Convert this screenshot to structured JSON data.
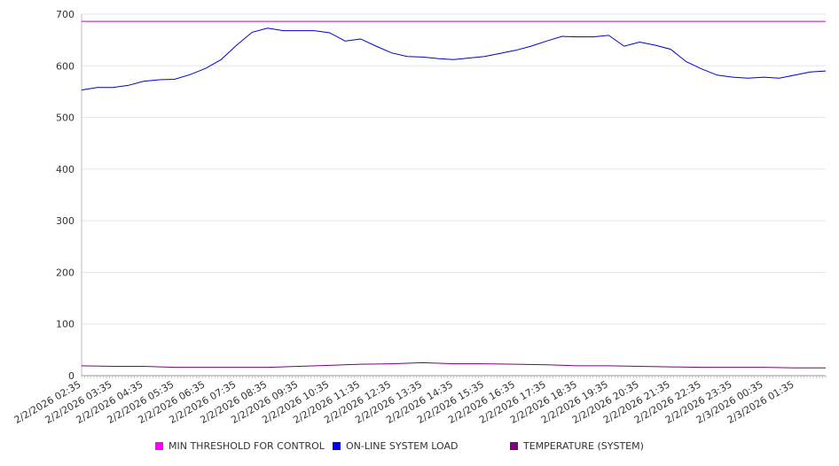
{
  "chart_data": {
    "type": "line",
    "title": "",
    "xlabel": "",
    "ylabel": "",
    "ylim": [
      0,
      700
    ],
    "yticks": [
      0,
      100,
      200,
      300,
      400,
      500,
      600,
      700
    ],
    "xlim": [
      "2/2/2026 02:35",
      "2/3/2026 02:35"
    ],
    "xtick_labels": [
      "2/2/2026 02:35",
      "2/2/2026 03:35",
      "2/2/2026 04:35",
      "2/2/2026 05:35",
      "2/2/2026 06:35",
      "2/2/2026 07:35",
      "2/2/2026 08:35",
      "2/2/2026 09:35",
      "2/2/2026 10:35",
      "2/2/2026 11:35",
      "2/2/2026 12:35",
      "2/2/2026 13:35",
      "2/2/2026 14:35",
      "2/2/2026 15:35",
      "2/2/2026 16:35",
      "2/2/2026 17:35",
      "2/2/2026 18:35",
      "2/2/2026 19:35",
      "2/2/2026 20:35",
      "2/2/2026 21:35",
      "2/2/2026 22:35",
      "2/2/2026 23:35",
      "2/3/2026 00:35",
      "2/3/2026 01:35"
    ],
    "grid": true,
    "legend_position": "bottom",
    "series": [
      {
        "name": "MIN THRESHOLD FOR CONTROL",
        "color": "#cc00cc",
        "x": [
          "2/2/2026 02:35",
          "2/3/2026 02:35"
        ],
        "values": [
          686,
          686
        ]
      },
      {
        "name": "ON-LINE SYSTEM LOAD",
        "color": "#0000cc",
        "x": [
          "2/2/2026 02:35",
          "2/2/2026 03:05",
          "2/2/2026 03:35",
          "2/2/2026 04:05",
          "2/2/2026 04:35",
          "2/2/2026 05:05",
          "2/2/2026 05:35",
          "2/2/2026 06:05",
          "2/2/2026 06:35",
          "2/2/2026 07:05",
          "2/2/2026 07:35",
          "2/2/2026 08:05",
          "2/2/2026 08:35",
          "2/2/2026 09:05",
          "2/2/2026 09:35",
          "2/2/2026 10:05",
          "2/2/2026 10:35",
          "2/2/2026 11:05",
          "2/2/2026 11:35",
          "2/2/2026 12:05",
          "2/2/2026 12:35",
          "2/2/2026 13:05",
          "2/2/2026 13:35",
          "2/2/2026 14:05",
          "2/2/2026 14:35",
          "2/2/2026 15:05",
          "2/2/2026 15:35",
          "2/2/2026 16:05",
          "2/2/2026 16:35",
          "2/2/2026 17:05",
          "2/2/2026 17:35",
          "2/2/2026 18:05",
          "2/2/2026 18:35",
          "2/2/2026 19:05",
          "2/2/2026 19:35",
          "2/2/2026 20:05",
          "2/2/2026 20:35",
          "2/2/2026 21:05",
          "2/2/2026 21:35",
          "2/2/2026 22:05",
          "2/2/2026 22:35",
          "2/2/2026 23:05",
          "2/2/2026 23:35",
          "2/3/2026 00:05",
          "2/3/2026 00:35",
          "2/3/2026 01:05",
          "2/3/2026 01:35",
          "2/3/2026 02:05",
          "2/3/2026 02:35"
        ],
        "values": [
          553,
          558,
          558,
          562,
          570,
          573,
          574,
          583,
          595,
          612,
          640,
          665,
          673,
          668,
          668,
          668,
          664,
          648,
          652,
          638,
          625,
          618,
          617,
          614,
          612,
          615,
          618,
          624,
          630,
          638,
          648,
          657,
          656,
          656,
          659,
          638,
          646,
          640,
          632,
          608,
          594,
          582,
          578,
          576,
          578,
          576,
          582,
          588,
          590
        ]
      },
      {
        "name": "TEMPERATURE (SYSTEM)",
        "color": "#800080",
        "x": [
          "2/2/2026 02:35",
          "2/2/2026 03:35",
          "2/2/2026 04:35",
          "2/2/2026 05:35",
          "2/2/2026 06:35",
          "2/2/2026 07:35",
          "2/2/2026 08:35",
          "2/2/2026 09:35",
          "2/2/2026 10:35",
          "2/2/2026 11:35",
          "2/2/2026 12:35",
          "2/2/2026 13:35",
          "2/2/2026 14:35",
          "2/2/2026 15:35",
          "2/2/2026 16:35",
          "2/2/2026 17:35",
          "2/2/2026 18:35",
          "2/2/2026 19:35",
          "2/2/2026 20:35",
          "2/2/2026 21:35",
          "2/2/2026 22:35",
          "2/2/2026 23:35",
          "2/3/2026 00:35",
          "2/3/2026 01:35",
          "2/3/2026 02:35"
        ],
        "values": [
          19,
          18,
          18,
          16,
          16,
          16,
          16,
          18,
          20,
          22,
          23,
          25,
          23,
          23,
          22,
          21,
          19,
          19,
          18,
          17,
          16,
          16,
          16,
          15,
          15
        ]
      }
    ]
  }
}
